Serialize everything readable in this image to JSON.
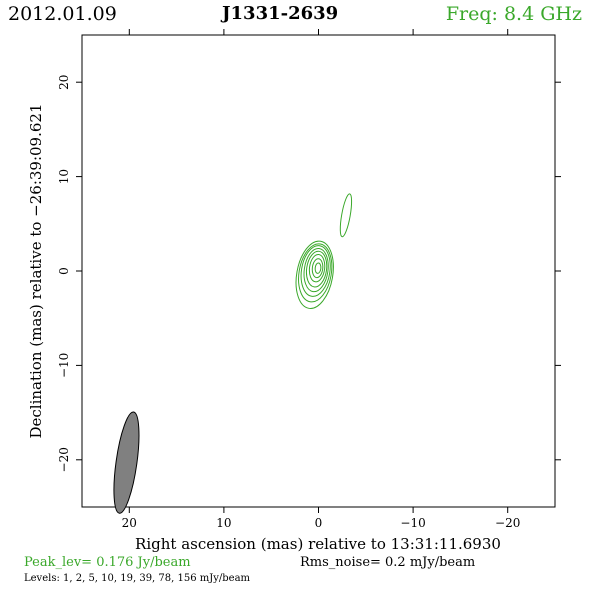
{
  "header": {
    "date": "2012.01.09",
    "source": "J1331-2639",
    "frequency": "Freq: 8.4 GHz"
  },
  "footer": {
    "peak": "Peak_lev=  0.176 Jy/beam",
    "rms": "Rms_noise=  0.2 mJy/beam",
    "levels": "Levels:   1,   2,   5,  10,  19,  39,  78, 156 mJy/beam"
  },
  "colors": {
    "contour": "#3aa82a",
    "beam_fill": "#808080",
    "text": "#000000"
  },
  "chart_data": {
    "type": "contour",
    "xlabel": "Right ascension (mas) relative to 13:31:11.6930",
    "ylabel": "Declination (mas) relative to −26:39:09.621",
    "xlim": [
      25,
      -25
    ],
    "ylim": [
      -25,
      25
    ],
    "xticks": [
      20,
      10,
      0,
      -10,
      -20
    ],
    "yticks": [
      20,
      10,
      0,
      -10,
      -20
    ],
    "xtick_labels": [
      "20",
      "10",
      "0",
      "−10",
      "−20"
    ],
    "ytick_labels": [
      "20",
      "10",
      "0",
      "−10",
      "−20"
    ],
    "beam": {
      "ra": 20.3,
      "dec": -20.3,
      "major": 10.8,
      "minor": 2.2,
      "pa_deg": 8
    },
    "contours": [
      {
        "level": 1,
        "ra": 0.4,
        "dec": -0.4,
        "a": 3.6,
        "b": 1.9,
        "pa_deg": 10
      },
      {
        "level": 2,
        "ra": 0.35,
        "dec": -0.2,
        "a": 3.1,
        "b": 1.7,
        "pa_deg": 10
      },
      {
        "level": 5,
        "ra": 0.3,
        "dec": 0.0,
        "a": 2.7,
        "b": 1.5,
        "pa_deg": 9
      },
      {
        "level": 10,
        "ra": 0.25,
        "dec": 0.1,
        "a": 2.3,
        "b": 1.25,
        "pa_deg": 8
      },
      {
        "level": 19,
        "ra": 0.2,
        "dec": 0.2,
        "a": 1.9,
        "b": 1.05,
        "pa_deg": 8
      },
      {
        "level": 39,
        "ra": 0.15,
        "dec": 0.3,
        "a": 1.45,
        "b": 0.8,
        "pa_deg": 7
      },
      {
        "level": 78,
        "ra": 0.1,
        "dec": 0.3,
        "a": 1.0,
        "b": 0.55,
        "pa_deg": 6
      },
      {
        "level": 156,
        "ra": 0.05,
        "dec": 0.3,
        "a": 0.55,
        "b": 0.3,
        "pa_deg": 5
      },
      {
        "level": 1,
        "ra": -2.9,
        "dec": 5.9,
        "a": 2.3,
        "b": 0.45,
        "pa_deg": 10
      }
    ]
  }
}
